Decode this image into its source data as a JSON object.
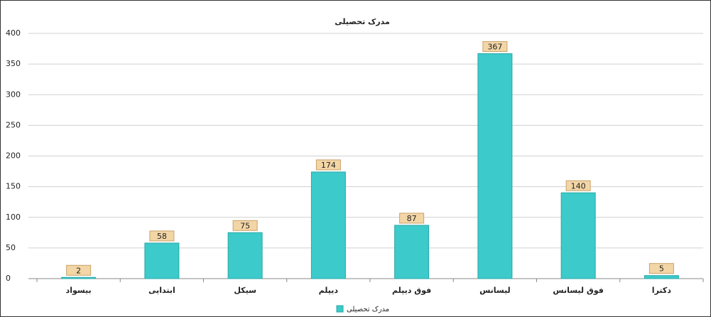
{
  "chart_data": {
    "type": "bar",
    "title": "مدرک تحصیلی",
    "categories": [
      "بیسواد",
      "ابتدایی",
      "سیکل",
      "دیپلم",
      "فوق دیپلم",
      "لیسانس",
      "فوق لیسانس",
      "دکترا"
    ],
    "series": [
      {
        "name": "مدرک تحصیلی",
        "color": "#3ccaca",
        "values": [
          2,
          58,
          75,
          174,
          87,
          367,
          140,
          5
        ]
      }
    ],
    "ylim": [
      0,
      400
    ],
    "yticks": [
      0,
      50,
      100,
      150,
      200,
      250,
      300,
      350,
      400
    ],
    "grid": true,
    "legend": "bottom"
  }
}
